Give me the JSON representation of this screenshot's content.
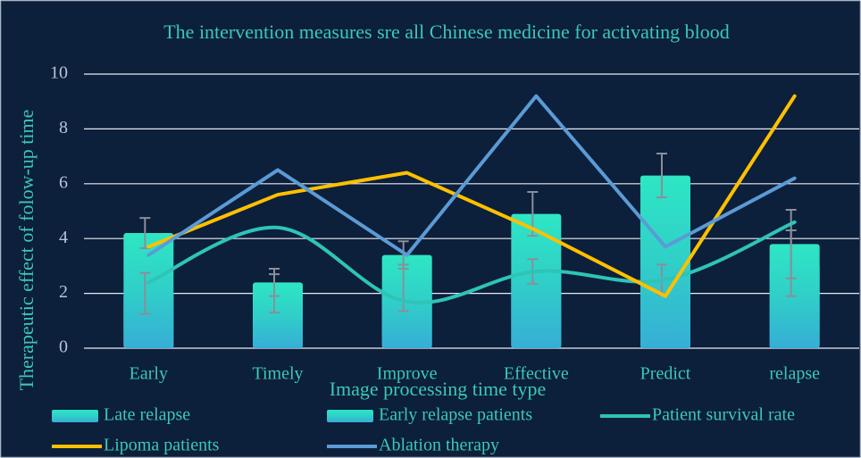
{
  "chart_data": {
    "type": "bar",
    "title": "The intervention measures sre all Chinese medicine for activating blood",
    "x_label": "Image processing time type",
    "y_label": "Therapeutic effect of folow-up time",
    "categories": [
      "Early",
      "Timely",
      "Improve",
      "Effective",
      "Predict",
      "relapse"
    ],
    "ylim": [
      0,
      10
    ],
    "yticks": [
      0,
      2,
      4,
      6,
      8,
      10
    ],
    "grid": true,
    "series": [
      {
        "name": "Late relapse",
        "type": "bar",
        "color": "#2fd8c0",
        "values": [
          4.2,
          2.4,
          3.4,
          4.9,
          6.3,
          3.8
        ],
        "errors": [
          0.55,
          0.5,
          0.5,
          0.8,
          0.8,
          1.25
        ]
      },
      {
        "name": "Early relapse patients",
        "type": "bar",
        "color": "#2fd8c0",
        "values": [
          2.0,
          2.0,
          2.2,
          2.8,
          2.5,
          3.1
        ],
        "errors": [
          0.75,
          0.7,
          0.85,
          0.45,
          0.55,
          1.2
        ]
      },
      {
        "name": "Patient survival rate",
        "type": "line",
        "smooth": true,
        "color": "#2ec4b6",
        "values": [
          2.4,
          4.4,
          1.7,
          2.8,
          2.5,
          4.6
        ]
      },
      {
        "name": "Lipoma patients",
        "type": "line",
        "smooth": false,
        "color": "#ffc000",
        "values": [
          3.7,
          5.6,
          6.4,
          4.3,
          1.9,
          9.2
        ]
      },
      {
        "name": "Ablation therapy",
        "type": "line",
        "smooth": false,
        "color": "#5b9bd5",
        "values": [
          3.4,
          6.5,
          3.4,
          9.2,
          3.7,
          6.2
        ]
      }
    ]
  }
}
